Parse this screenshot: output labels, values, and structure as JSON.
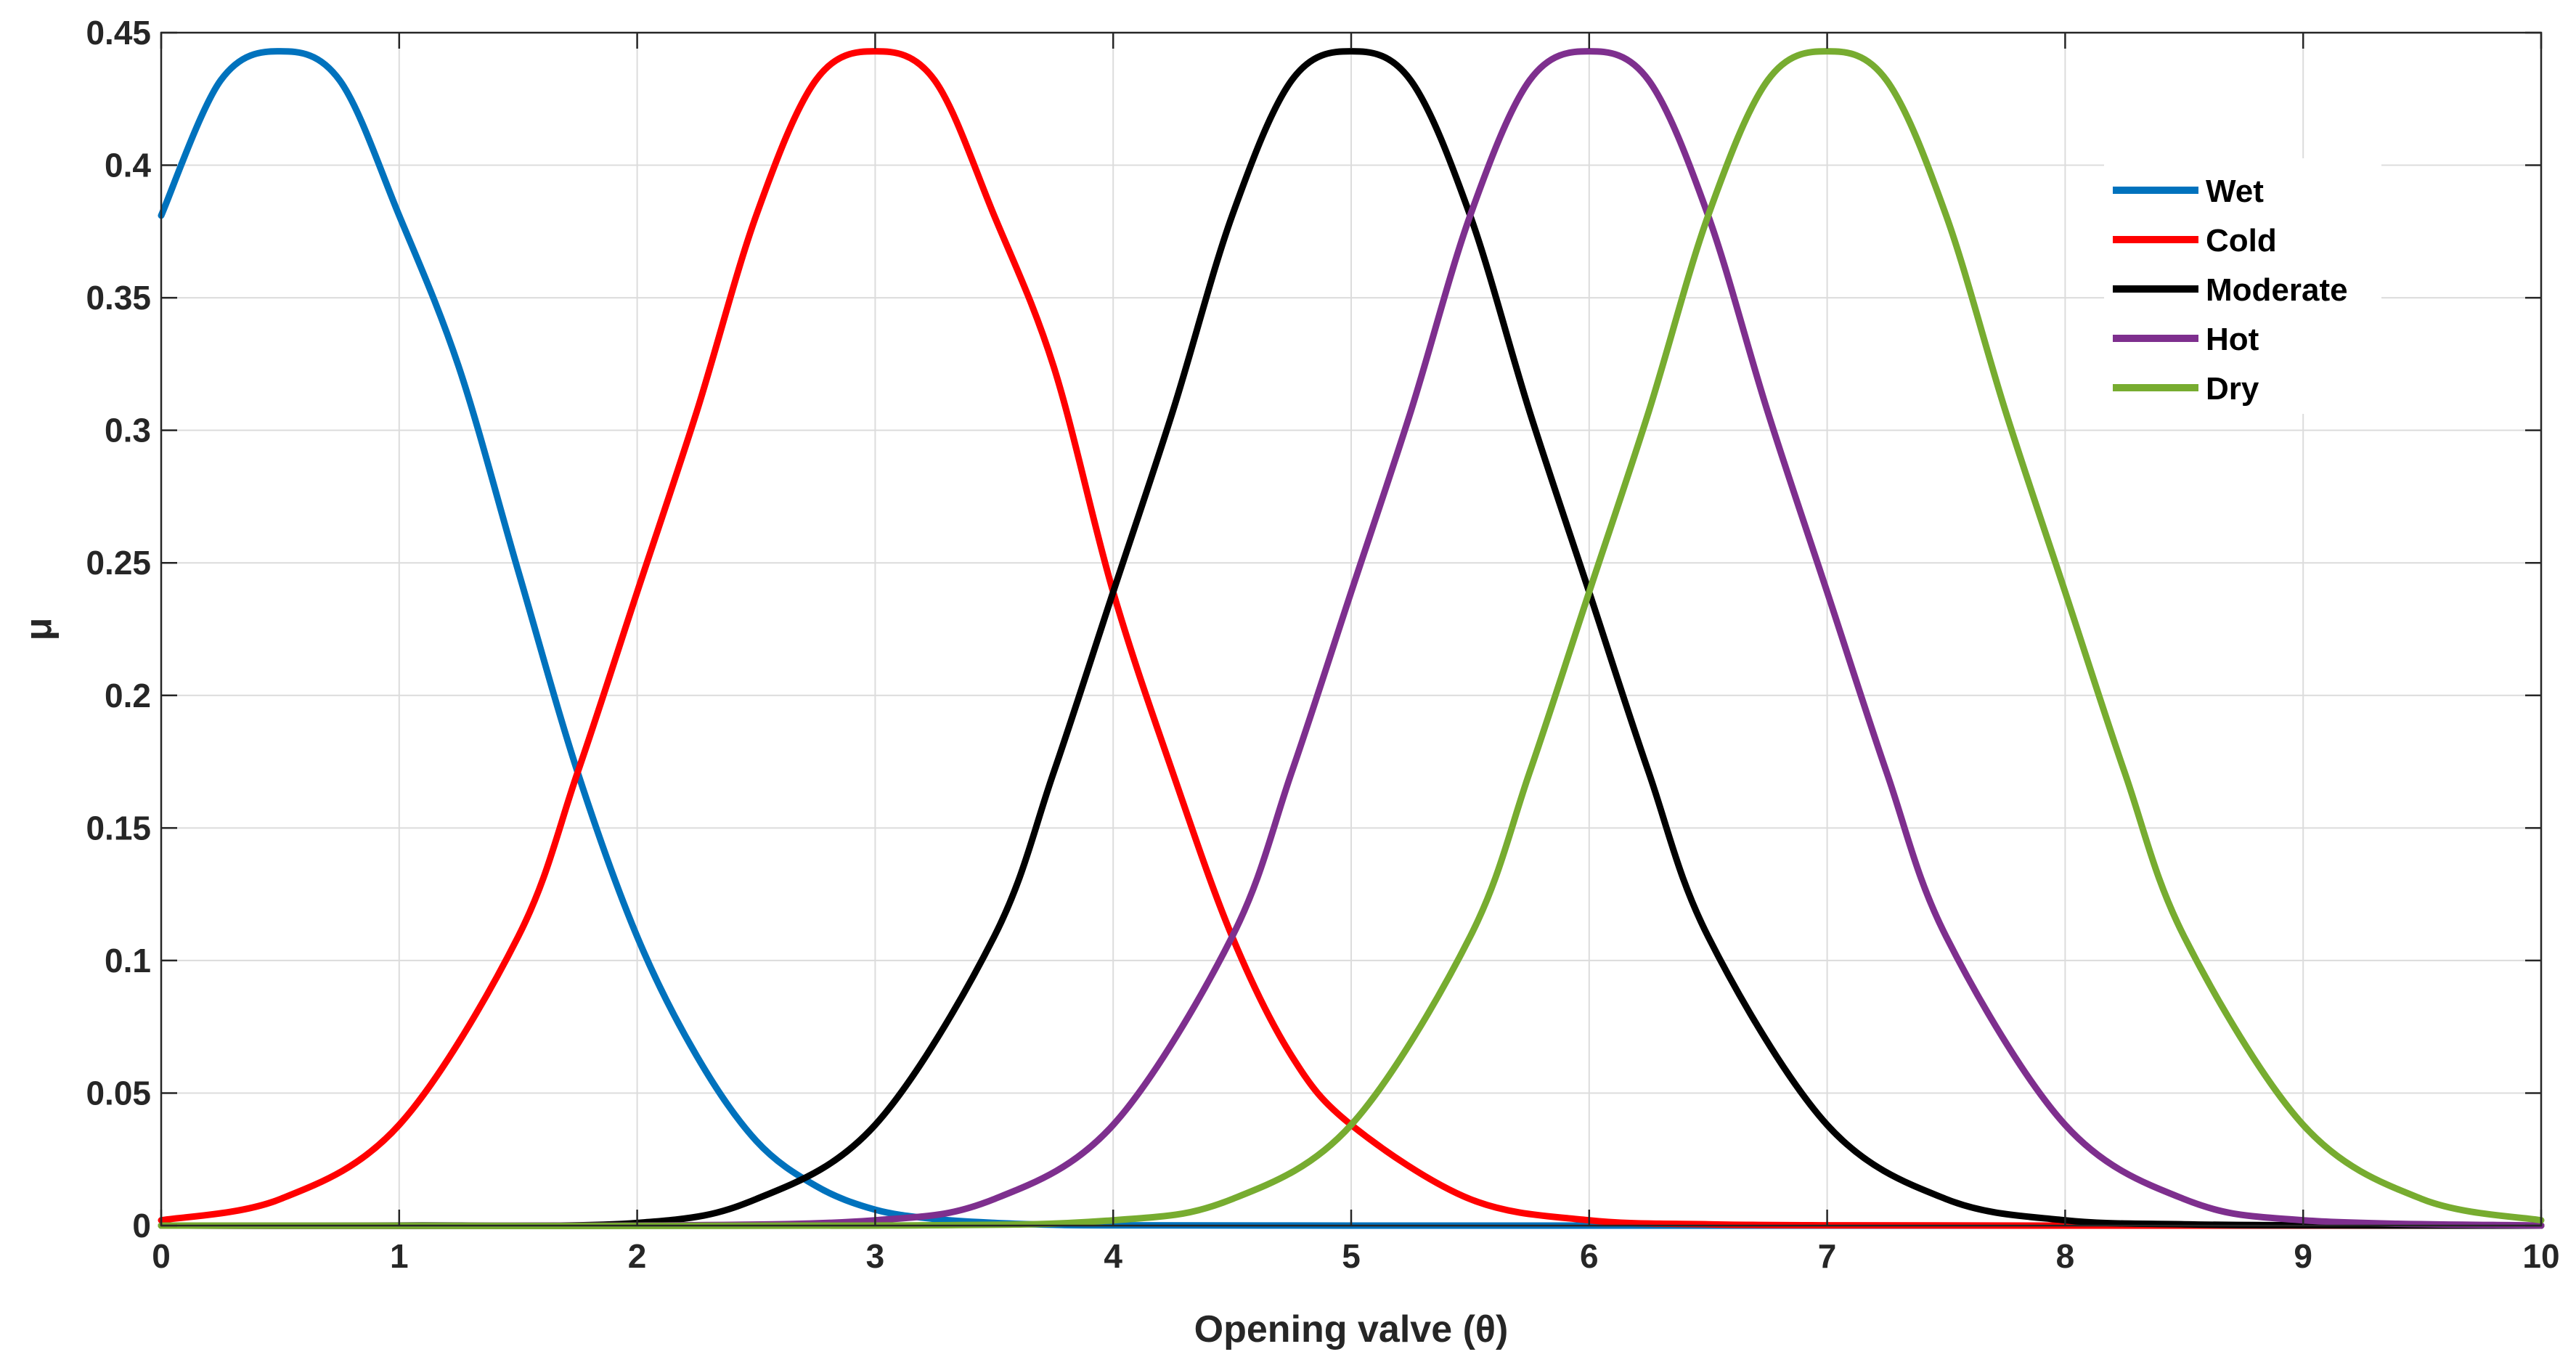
{
  "chart_data": {
    "type": "line",
    "xlabel": "Opening valve (θ)",
    "ylabel": "μ",
    "xlim": [
      0,
      10
    ],
    "ylim": [
      0,
      0.45
    ],
    "xticks": [
      0,
      1,
      2,
      3,
      4,
      5,
      6,
      7,
      8,
      9,
      10
    ],
    "yticks": [
      0,
      0.05,
      0.1,
      0.15,
      0.2,
      0.25,
      0.3,
      0.35,
      0.4,
      0.45
    ],
    "xtick_labels": [
      "0",
      "1",
      "2",
      "3",
      "4",
      "5",
      "6",
      "7",
      "8",
      "9",
      "10"
    ],
    "ytick_labels": [
      "0",
      "0.05",
      "0.1",
      "0.15",
      "0.2",
      "0.25",
      "0.3",
      "0.35",
      "0.4",
      "0.45"
    ],
    "grid": true,
    "legend_position": "top-right",
    "series": [
      {
        "name": "Wet",
        "color": "#0072BD",
        "x": [
          0,
          0.25,
          0.5,
          0.75,
          1,
          1.25,
          1.5,
          1.75,
          2,
          2.25,
          2.5,
          2.75,
          3,
          3.25,
          3.5,
          3.75,
          4,
          5,
          6,
          7,
          8,
          9,
          10
        ],
        "y": [
          0.381,
          0.432,
          0.443,
          0.432,
          0.381,
          0.324,
          0.247,
          0.171,
          0.109,
          0.064,
          0.032,
          0.015,
          0.006,
          0.0025,
          0.001,
          0.0003,
          0.0001,
          0,
          0,
          0,
          0,
          0,
          0
        ]
      },
      {
        "name": "Cold",
        "color": "#FF0000",
        "x": [
          0,
          0.5,
          1,
          1.5,
          1.75,
          2,
          2.25,
          2.5,
          2.75,
          3,
          3.25,
          3.5,
          3.75,
          4,
          4.25,
          4.5,
          4.75,
          5,
          5.5,
          6,
          6.5,
          7,
          8,
          10
        ],
        "y": [
          0.002,
          0.01,
          0.038,
          0.109,
          0.171,
          0.239,
          0.307,
          0.381,
          0.432,
          0.443,
          0.432,
          0.381,
          0.324,
          0.239,
          0.171,
          0.109,
          0.064,
          0.038,
          0.01,
          0.002,
          0.0005,
          0.0001,
          0,
          0
        ]
      },
      {
        "name": "Moderate",
        "color": "#000000",
        "x": [
          0,
          1,
          2,
          2.5,
          3,
          3.5,
          3.75,
          4,
          4.25,
          4.5,
          4.75,
          5,
          5.25,
          5.5,
          5.75,
          6,
          6.25,
          6.5,
          7,
          7.5,
          8,
          8.5,
          9,
          10
        ],
        "y": [
          0,
          0,
          0.001,
          0.01,
          0.038,
          0.109,
          0.171,
          0.239,
          0.307,
          0.381,
          0.432,
          0.443,
          0.432,
          0.381,
          0.307,
          0.239,
          0.171,
          0.109,
          0.038,
          0.01,
          0.002,
          0.0005,
          0.0001,
          0
        ]
      },
      {
        "name": "Hot",
        "color": "#7E2F8E",
        "x": [
          0,
          2,
          3,
          3.5,
          4,
          4.5,
          4.75,
          5,
          5.25,
          5.5,
          5.75,
          6,
          6.25,
          6.5,
          6.75,
          7,
          7.25,
          7.5,
          8,
          8.5,
          9,
          10
        ],
        "y": [
          0,
          0,
          0.002,
          0.01,
          0.038,
          0.109,
          0.171,
          0.239,
          0.307,
          0.381,
          0.432,
          0.443,
          0.432,
          0.381,
          0.307,
          0.239,
          0.171,
          0.109,
          0.038,
          0.01,
          0.002,
          0
        ]
      },
      {
        "name": "Dry",
        "color": "#77AC30",
        "x": [
          0,
          3,
          4,
          4.5,
          5,
          5.5,
          5.75,
          6,
          6.25,
          6.5,
          6.75,
          7,
          7.25,
          7.5,
          7.75,
          8,
          8.25,
          8.5,
          9,
          9.5,
          10
        ],
        "y": [
          0,
          0,
          0.002,
          0.01,
          0.038,
          0.109,
          0.171,
          0.239,
          0.307,
          0.381,
          0.432,
          0.443,
          0.432,
          0.381,
          0.307,
          0.239,
          0.171,
          0.109,
          0.038,
          0.01,
          0.002
        ]
      }
    ]
  }
}
